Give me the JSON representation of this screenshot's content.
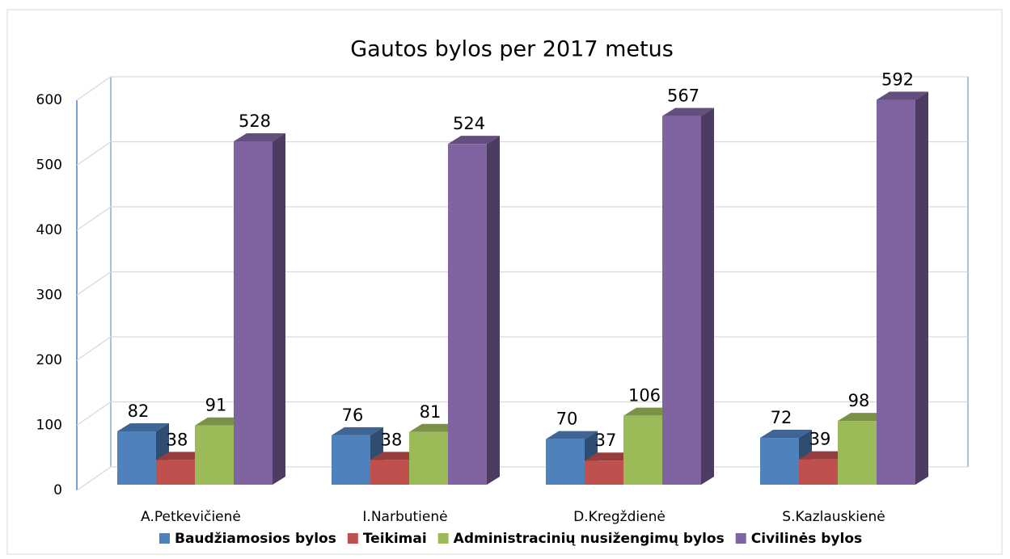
{
  "chart_data": {
    "type": "bar3d",
    "title": "Gautos bylos per 2017 metus",
    "categories": [
      "A.Petkevičienė",
      "I.Narbutienė",
      "D.Kregždienė",
      "S.Kazlauskienė"
    ],
    "series": [
      {
        "name": "Baudžiamosios bylos",
        "color": "#4f81bd",
        "values": [
          82,
          76,
          70,
          72
        ]
      },
      {
        "name": "Teikimai",
        "color": "#c0504d",
        "values": [
          38,
          38,
          37,
          39
        ]
      },
      {
        "name": "Administracinių nusižengimų bylos",
        "color": "#9bbb59",
        "values": [
          91,
          81,
          106,
          98
        ]
      },
      {
        "name": "Civilinės bylos",
        "color": "#8064a2",
        "values": [
          528,
          524,
          567,
          592
        ]
      }
    ],
    "ylim": [
      0,
      600
    ],
    "yticks": [
      0,
      100,
      200,
      300,
      400,
      500,
      600
    ],
    "grid": true,
    "legend": "bottom"
  }
}
